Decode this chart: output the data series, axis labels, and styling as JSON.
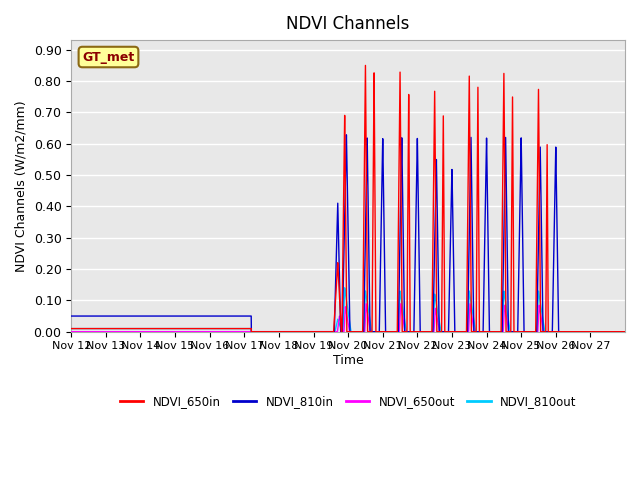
{
  "title": "NDVI Channels",
  "ylabel": "NDVI Channels (W/m2/mm)",
  "xlabel": "Time",
  "annotation": "GT_met",
  "ylim": [
    0.0,
    0.93
  ],
  "colors": {
    "NDVI_650in": "#ff0000",
    "NDVI_810in": "#0000cc",
    "NDVI_650out": "#ff00ff",
    "NDVI_810out": "#00ccff"
  },
  "background_color": "#e8e8e8",
  "grid_color": "#ffffff",
  "xtick_labels": [
    "Nov 12",
    "Nov 13",
    "Nov 14",
    "Nov 15",
    "Nov 16",
    "Nov 17",
    "Nov 18",
    "Nov 19",
    "Nov 20",
    "Nov 21",
    "Nov 22",
    "Nov 23",
    "Nov 24",
    "Nov 25",
    "Nov 26",
    "Nov 27"
  ],
  "legend_labels": [
    "NDVI_650in",
    "NDVI_810in",
    "NDVI_650out",
    "NDVI_810out"
  ]
}
